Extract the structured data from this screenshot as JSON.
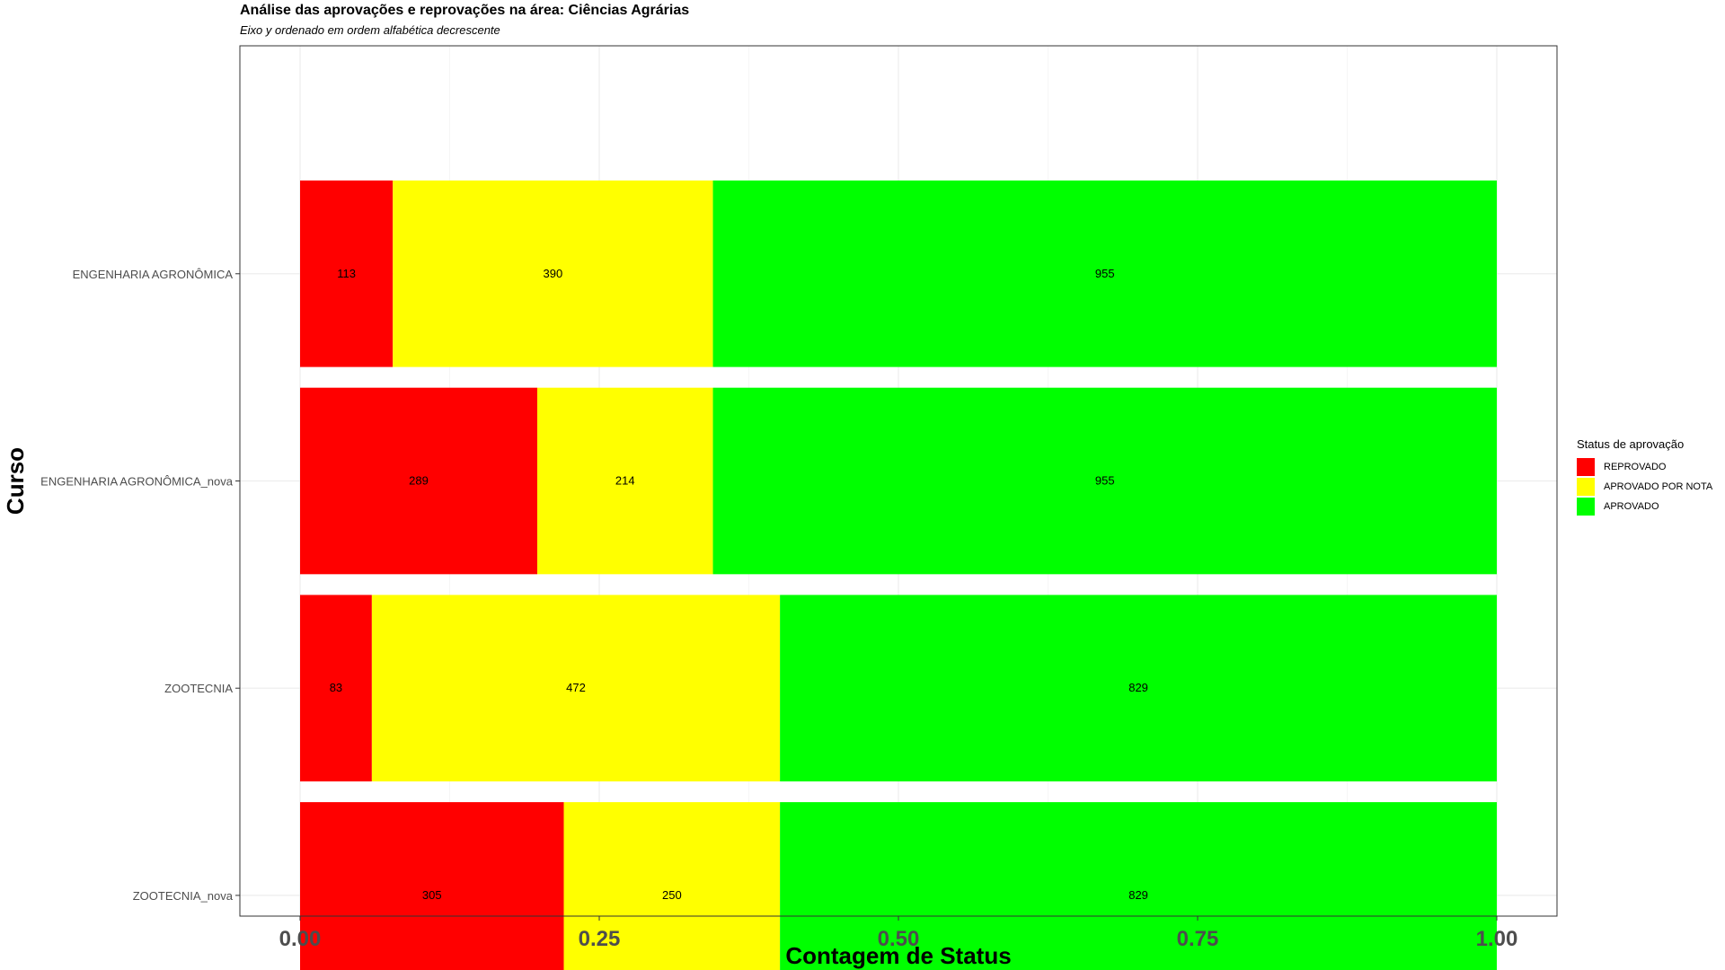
{
  "chart_data": {
    "type": "bar",
    "orientation": "horizontal",
    "stacked": "percent",
    "title": "Análise das aprovações e reprovações na área:  Ciências Agrárias",
    "subtitle": "Eixo y ordenado em ordem alfabética decrescente",
    "xlabel": "Contagem de Status",
    "ylabel": "Curso",
    "xlim": [
      0,
      1
    ],
    "x_ticks": [
      "0.00",
      "0.25",
      "0.50",
      "0.75",
      "1.00"
    ],
    "categories": [
      "ENGENHARIA AGRONÔMICA",
      "ENGENHARIA AGRONÔMICA_nova",
      "ZOOTECNIA",
      "ZOOTECNIA_nova"
    ],
    "series": [
      {
        "name": "REPROVADO",
        "color": "#ff0000",
        "values": [
          113,
          289,
          83,
          305
        ]
      },
      {
        "name": "APROVADO POR NOTA",
        "color": "#ffff00",
        "values": [
          390,
          214,
          472,
          250
        ]
      },
      {
        "name": "APROVADO",
        "color": "#00ff00",
        "values": [
          955,
          955,
          829,
          829
        ]
      }
    ],
    "legend": {
      "title": "Status de aprovação",
      "position": "right"
    },
    "grid": true
  }
}
